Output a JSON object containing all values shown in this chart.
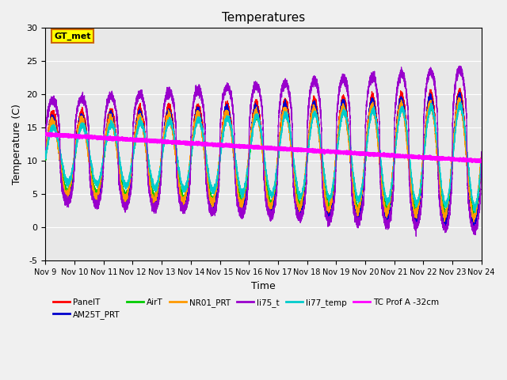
{
  "title": "Temperatures",
  "xlabel": "Time",
  "ylabel": "Temperature (C)",
  "ylim": [
    -5,
    30
  ],
  "xlim": [
    0,
    15
  ],
  "xtick_labels": [
    "Nov 9",
    "Nov 10",
    "Nov 11",
    "Nov 12",
    "Nov 13",
    "Nov 14",
    "Nov 15",
    "Nov 16",
    "Nov 17",
    "Nov 18",
    "Nov 19",
    "Nov 20",
    "Nov 21",
    "Nov 22",
    "Nov 23",
    "Nov 24"
  ],
  "xtick_positions": [
    0,
    1,
    2,
    3,
    4,
    5,
    6,
    7,
    8,
    9,
    10,
    11,
    12,
    13,
    14,
    15
  ],
  "ytick_labels": [
    "-5",
    "0",
    "5",
    "10",
    "15",
    "20",
    "25",
    "30"
  ],
  "ytick_positions": [
    -5,
    0,
    5,
    10,
    15,
    20,
    25,
    30
  ],
  "bg_color": "#e8e8e8",
  "series_colors": {
    "PanelT": "#ff0000",
    "AM25T_PRT": "#0000cc",
    "AirT": "#00cc00",
    "NR01_PRT": "#ff9900",
    "li75_t": "#9900cc",
    "li77_temp": "#00cccc",
    "TC_Prof": "#ff00ff"
  },
  "gt_met_box_facecolor": "#ffff00",
  "gt_met_box_edgecolor": "#cc6600",
  "gt_met_text": "GT_met",
  "tc_prof_start": 14.0,
  "tc_prof_end": 10.0,
  "fig_facecolor": "#f0f0f0"
}
